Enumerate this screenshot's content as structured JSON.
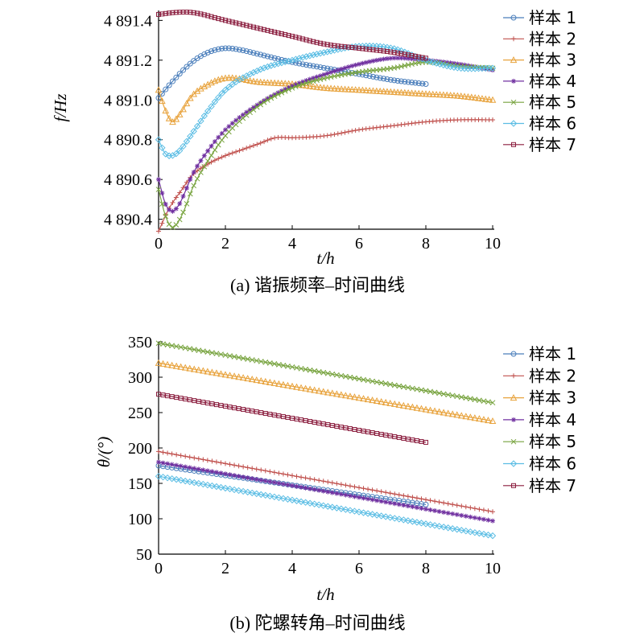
{
  "chart_data": [
    {
      "type": "line",
      "caption": "(a) 谐振频率–时间曲线",
      "xlabel": "t/h",
      "ylabel": "f/Hz",
      "xlim": [
        0,
        10
      ],
      "ylim": [
        4890.35,
        4891.45
      ],
      "xticks": [
        0,
        2,
        4,
        6,
        8,
        10
      ],
      "yticks": [
        4890.4,
        4890.6,
        4890.8,
        4891.0,
        4891.2,
        4891.4
      ],
      "ytick_labels": [
        "4 890.4",
        "4 890.6",
        "4 890.8",
        "4 891.0",
        "4 891.2",
        "4 891.4"
      ],
      "xtick_labels": [
        "0",
        "2",
        "4",
        "6",
        "8",
        "10"
      ],
      "legend": "right",
      "series": [
        {
          "name": "样本 1",
          "color": "#4a7ebb",
          "marker": "circle",
          "x": [
            0,
            0.4,
            1,
            1.5,
            2,
            2.5,
            3,
            4,
            5,
            6,
            7,
            8
          ],
          "y": [
            4891.01,
            4891.09,
            4891.19,
            4891.24,
            4891.26,
            4891.25,
            4891.23,
            4891.19,
            4891.16,
            4891.13,
            4891.1,
            4891.08
          ]
        },
        {
          "name": "样本 2",
          "color": "#c0504d",
          "marker": "plus",
          "x": [
            0,
            0.3,
            0.7,
            1,
            1.5,
            2,
            2.5,
            3,
            3.5,
            4,
            5,
            6,
            7,
            8,
            9,
            10
          ],
          "y": [
            4890.34,
            4890.45,
            4890.55,
            4890.62,
            4890.68,
            4890.72,
            4890.75,
            4890.78,
            4890.81,
            4890.81,
            4890.82,
            4890.85,
            4890.87,
            4890.89,
            4890.9,
            4890.9
          ]
        },
        {
          "name": "样本 3",
          "color": "#e8a33d",
          "marker": "triangle",
          "x": [
            0,
            0.2,
            0.4,
            0.6,
            1,
            1.5,
            2,
            3,
            4,
            5,
            6,
            7,
            8,
            9,
            10
          ],
          "y": [
            4891.05,
            4890.95,
            4890.89,
            4890.92,
            4891.02,
            4891.08,
            4891.11,
            4891.09,
            4891.08,
            4891.06,
            4891.05,
            4891.04,
            4891.03,
            4891.02,
            4891.0
          ]
        },
        {
          "name": "样本 4",
          "color": "#7030a0",
          "marker": "star",
          "x": [
            0,
            0.2,
            0.4,
            0.6,
            0.8,
            1,
            1.5,
            2,
            3,
            4,
            5,
            6,
            7,
            8,
            9,
            10
          ],
          "y": [
            4890.6,
            4890.48,
            4890.44,
            4890.47,
            4890.54,
            4890.62,
            4890.75,
            4890.85,
            4890.98,
            4891.07,
            4891.13,
            4891.18,
            4891.21,
            4891.2,
            4891.18,
            4891.15
          ]
        },
        {
          "name": "样本 5",
          "color": "#77a33e",
          "marker": "x",
          "x": [
            0,
            0.2,
            0.4,
            0.6,
            0.8,
            1,
            1.5,
            2,
            3,
            4,
            5,
            6,
            7,
            8,
            9,
            10
          ],
          "y": [
            4890.55,
            4890.42,
            4890.36,
            4890.39,
            4890.46,
            4890.55,
            4890.7,
            4890.82,
            4890.97,
            4891.06,
            4891.11,
            4891.14,
            4891.16,
            4891.19,
            4891.17,
            4891.16
          ]
        },
        {
          "name": "样本 6",
          "color": "#5bbde4",
          "marker": "diamond",
          "x": [
            0,
            0.2,
            0.4,
            0.6,
            1,
            1.5,
            2,
            3,
            4,
            5,
            6,
            7,
            8,
            9,
            10
          ],
          "y": [
            4890.8,
            4890.73,
            4890.72,
            4890.74,
            4890.83,
            4890.95,
            4891.05,
            4891.15,
            4891.2,
            4891.24,
            4891.27,
            4891.26,
            4891.2,
            4891.16,
            4891.16
          ]
        },
        {
          "name": "样本 7",
          "color": "#8b1e3f",
          "marker": "square",
          "x": [
            0,
            0.5,
            1,
            2,
            3,
            4,
            5,
            6,
            7,
            8
          ],
          "y": [
            4891.43,
            4891.44,
            4891.44,
            4891.4,
            4891.36,
            4891.32,
            4891.28,
            4891.26,
            4891.24,
            4891.21
          ]
        }
      ]
    },
    {
      "type": "line",
      "caption": "(b) 陀螺转角–时间曲线",
      "xlabel": "t/h",
      "ylabel": "θ/(°)",
      "xlim": [
        0,
        10
      ],
      "ylim": [
        50,
        350
      ],
      "xticks": [
        0,
        2,
        4,
        6,
        8,
        10
      ],
      "yticks": [
        50,
        100,
        150,
        200,
        250,
        300,
        350
      ],
      "ytick_labels": [
        "50",
        "100",
        "150",
        "200",
        "250",
        "300",
        "350"
      ],
      "xtick_labels": [
        "0",
        "2",
        "4",
        "6",
        "8",
        "10"
      ],
      "legend": "right",
      "series": [
        {
          "name": "样本 1",
          "color": "#4a7ebb",
          "marker": "circle",
          "x": [
            0,
            8
          ],
          "y": [
            175,
            120
          ]
        },
        {
          "name": "样本 2",
          "color": "#c0504d",
          "marker": "plus",
          "x": [
            0,
            10
          ],
          "y": [
            195,
            110
          ]
        },
        {
          "name": "样本 3",
          "color": "#e8a33d",
          "marker": "triangle",
          "x": [
            0,
            10
          ],
          "y": [
            320,
            238
          ]
        },
        {
          "name": "样本 4",
          "color": "#7030a0",
          "marker": "star",
          "x": [
            0,
            10
          ],
          "y": [
            180,
            97
          ]
        },
        {
          "name": "样本 5",
          "color": "#77a33e",
          "marker": "x",
          "x": [
            0,
            10
          ],
          "y": [
            348,
            264
          ]
        },
        {
          "name": "样本 6",
          "color": "#5bbde4",
          "marker": "diamond",
          "x": [
            0,
            10
          ],
          "y": [
            160,
            76
          ]
        },
        {
          "name": "样本 7",
          "color": "#8b1e3f",
          "marker": "square",
          "x": [
            0,
            8
          ],
          "y": [
            276,
            208
          ]
        }
      ]
    }
  ]
}
